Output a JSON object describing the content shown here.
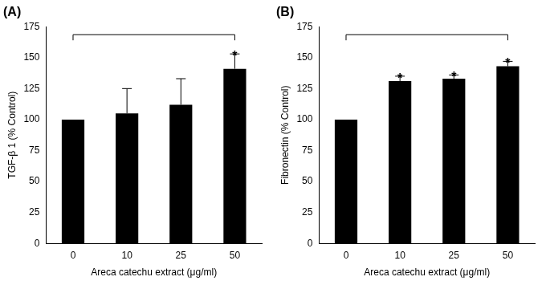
{
  "chart_data": [
    {
      "type": "bar",
      "title": "(A)",
      "x_label": "Areca catechu extract (μg/ml)",
      "y_label": "TGF-β 1 (% Control)",
      "categories": [
        "0",
        "10",
        "25",
        "50"
      ],
      "values": [
        100,
        105,
        112,
        141
      ],
      "errors": [
        null,
        20,
        21,
        12
      ],
      "color": "#000000",
      "ylim": [
        0,
        175
      ],
      "yticks": [
        0,
        25,
        50,
        75,
        100,
        125,
        150,
        175
      ],
      "grid": false,
      "legend": "none",
      "annotations": [
        {
          "text": "*",
          "category": "50"
        }
      ],
      "bracket": {
        "from": "0",
        "to": "50"
      }
    },
    {
      "type": "bar",
      "title": "(B)",
      "x_label": "Areca catechu extract (μg/ml)",
      "y_label": "Fibronectin (% Control)",
      "categories": [
        "0",
        "10",
        "25",
        "50"
      ],
      "values": [
        100,
        131,
        133,
        143
      ],
      "errors": [
        null,
        4,
        3,
        4
      ],
      "color": "#000000",
      "ylim": [
        0,
        175
      ],
      "yticks": [
        0,
        25,
        50,
        75,
        100,
        125,
        150,
        175
      ],
      "grid": false,
      "legend": "none",
      "annotations": [
        {
          "text": "*",
          "category": "10"
        },
        {
          "text": "*",
          "category": "25"
        },
        {
          "text": "*",
          "category": "50"
        }
      ],
      "bracket": {
        "from": "0",
        "to": "50"
      }
    }
  ]
}
